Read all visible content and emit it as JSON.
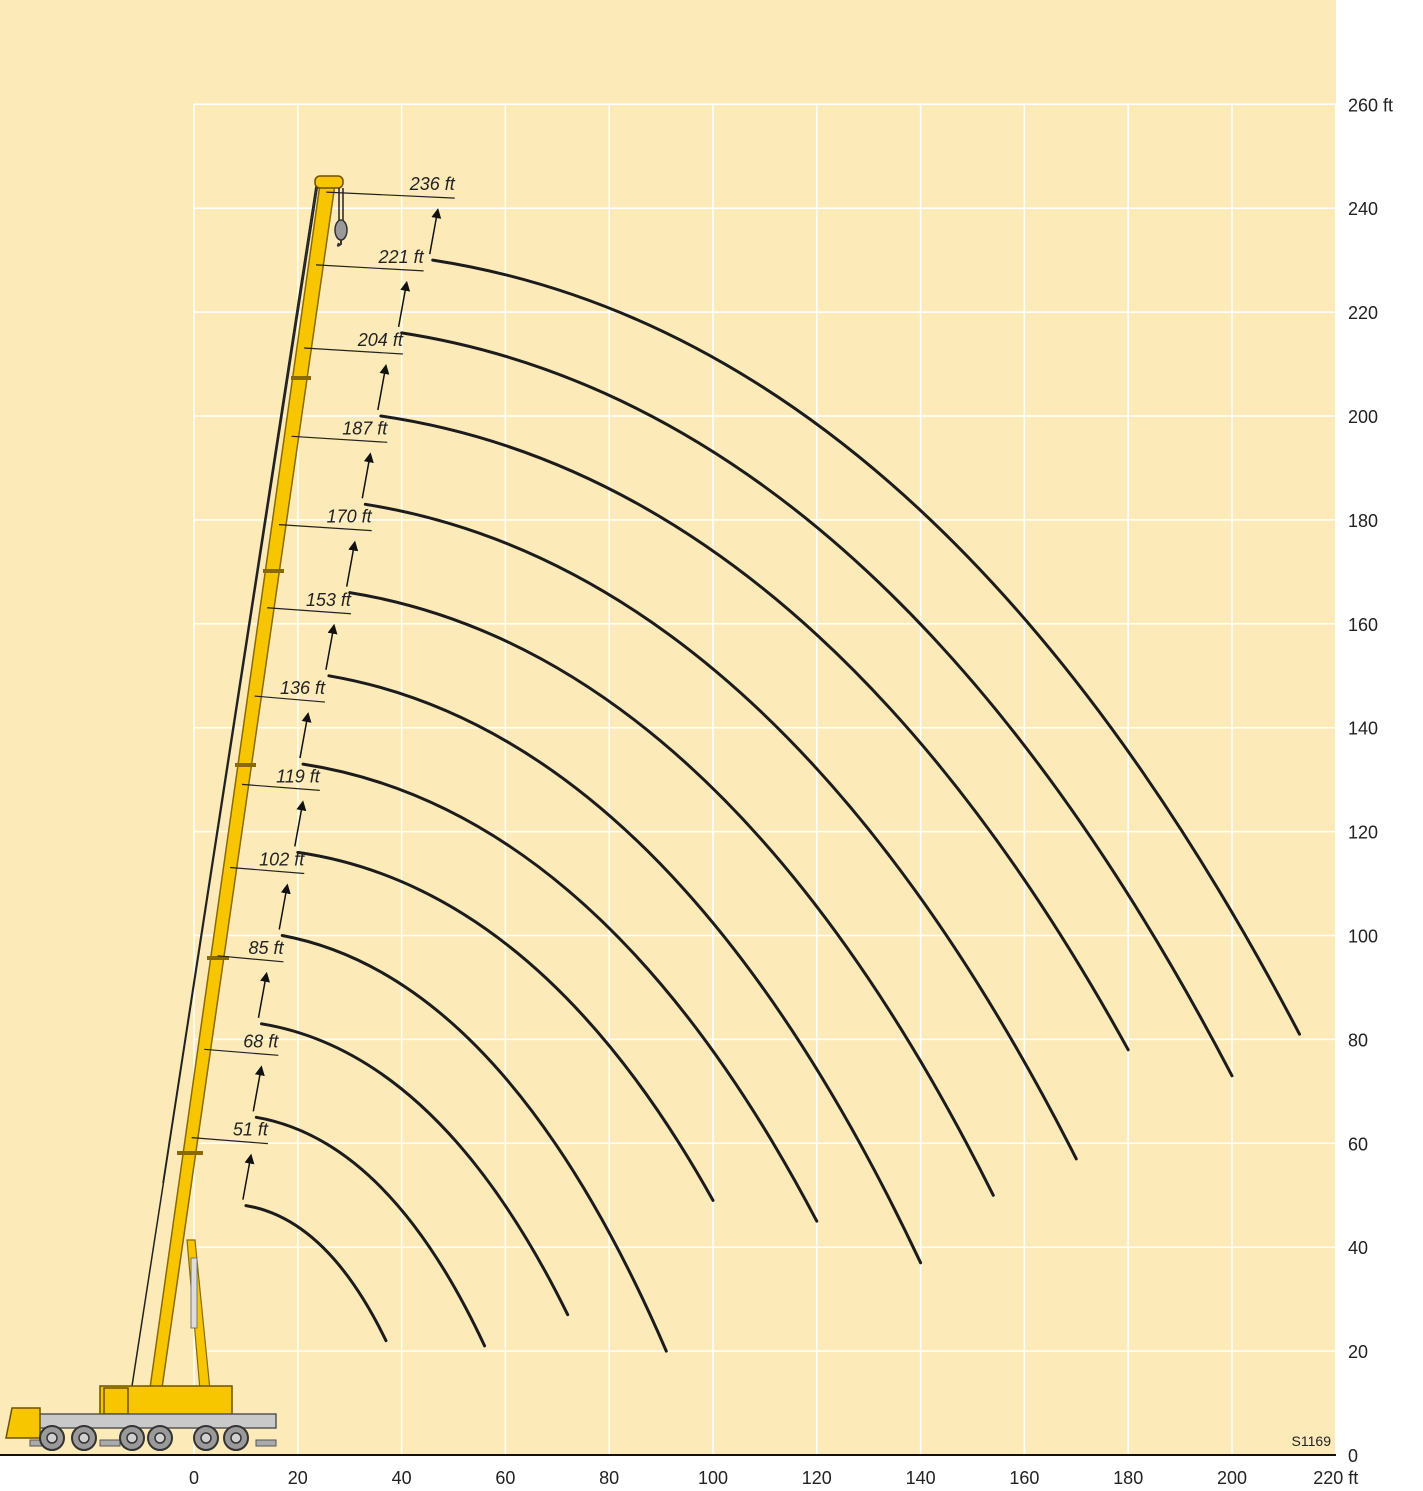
{
  "chart_data": {
    "type": "line",
    "x_ticks": [
      "0",
      "20",
      "40",
      "60",
      "80",
      "100",
      "120",
      "140",
      "160",
      "180",
      "200",
      "220 ft"
    ],
    "y_ticks": [
      "0",
      "20",
      "40",
      "60",
      "80",
      "100",
      "120",
      "140",
      "160",
      "180",
      "200",
      "220",
      "240",
      "260 ft"
    ],
    "xlim": [
      0,
      220
    ],
    "ylim": [
      0,
      260
    ],
    "grid": true,
    "drawing_code": "S1169",
    "colors": {
      "background": "#fcebb8",
      "grid": "#ffffff",
      "curve": "#1c1c1c",
      "boom": "#f7c600",
      "boom_outline": "#8a6a00"
    },
    "series": [
      {
        "label": "51 ft",
        "start": [
          10,
          48
        ],
        "end": [
          37,
          22
        ]
      },
      {
        "label": "68 ft",
        "start": [
          12,
          65
        ],
        "end": [
          56,
          21
        ]
      },
      {
        "label": "85 ft",
        "start": [
          13,
          83
        ],
        "end": [
          72,
          27
        ]
      },
      {
        "label": "102 ft",
        "start": [
          17,
          100
        ],
        "end": [
          91,
          20
        ]
      },
      {
        "label": "119 ft",
        "start": [
          20,
          116
        ],
        "end": [
          100,
          49
        ]
      },
      {
        "label": "136 ft",
        "start": [
          21,
          133
        ],
        "end": [
          120,
          45
        ]
      },
      {
        "label": "153 ft",
        "start": [
          26,
          150
        ],
        "end": [
          140,
          37
        ]
      },
      {
        "label": "170 ft",
        "start": [
          30,
          166
        ],
        "end": [
          154,
          50
        ]
      },
      {
        "label": "187 ft",
        "start": [
          33,
          183
        ],
        "end": [
          170,
          57
        ]
      },
      {
        "label": "204 ft",
        "start": [
          36,
          200
        ],
        "end": [
          180,
          78
        ]
      },
      {
        "label": "221 ft",
        "start": [
          40,
          216
        ],
        "end": [
          200,
          73
        ]
      },
      {
        "label": "236 ft",
        "start": [
          46,
          230
        ],
        "end": [
          213,
          81
        ]
      }
    ]
  }
}
